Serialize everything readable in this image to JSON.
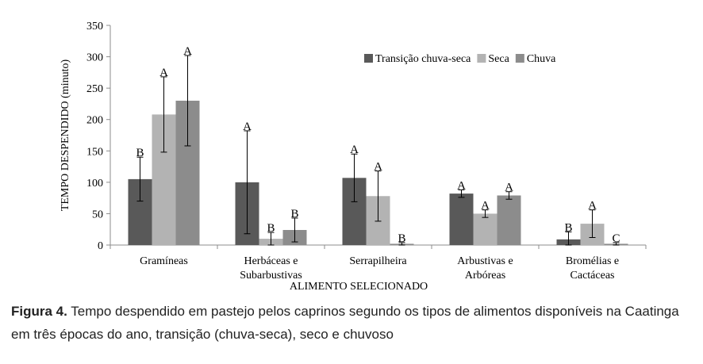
{
  "chart_data": {
    "type": "bar",
    "ylabel": "TEMPO DESPENDIDO  (minuto)",
    "xlabel": "ALIMENTO SELECIONADO",
    "ylim": [
      0,
      350
    ],
    "yticks": [
      0,
      50,
      100,
      150,
      200,
      250,
      300,
      350
    ],
    "grid": false,
    "legend_position": "top-right",
    "categories": [
      [
        "Gramíneas"
      ],
      [
        "Herbáceas e",
        "Subarbustivas"
      ],
      [
        "Serrapilheira"
      ],
      [
        "Arbustivas e",
        "Arbóreas"
      ],
      [
        "Bromélias e",
        "Cactáceas"
      ]
    ],
    "series": [
      {
        "name": "Transição chuva-seca",
        "color": "#595959",
        "values": [
          105,
          100,
          107,
          82,
          9
        ],
        "error": [
          35,
          82,
          38,
          6,
          12
        ],
        "letters": [
          "B",
          "A",
          "A",
          "A",
          "B"
        ]
      },
      {
        "name": "Seca",
        "color": "#b3b3b3",
        "values": [
          208,
          10,
          78,
          50,
          34
        ],
        "error": [
          60,
          10,
          40,
          6,
          22
        ],
        "letters": [
          "A",
          "B",
          "A",
          "A",
          "A"
        ]
      },
      {
        "name": "Chuva",
        "color": "#8c8c8c",
        "values": [
          230,
          24,
          2,
          79,
          2
        ],
        "error": [
          72,
          19,
          2,
          6,
          2
        ],
        "letters": [
          "A",
          "B",
          "B",
          "A",
          "C"
        ]
      }
    ]
  },
  "caption": {
    "label": "Figura 4.",
    "text": " Tempo despendido em pastejo pelos caprinos segundo os tipos de alimentos disponíveis na Caatinga em três épocas do ano, transição (chuva-seca), seco e chuvoso"
  }
}
